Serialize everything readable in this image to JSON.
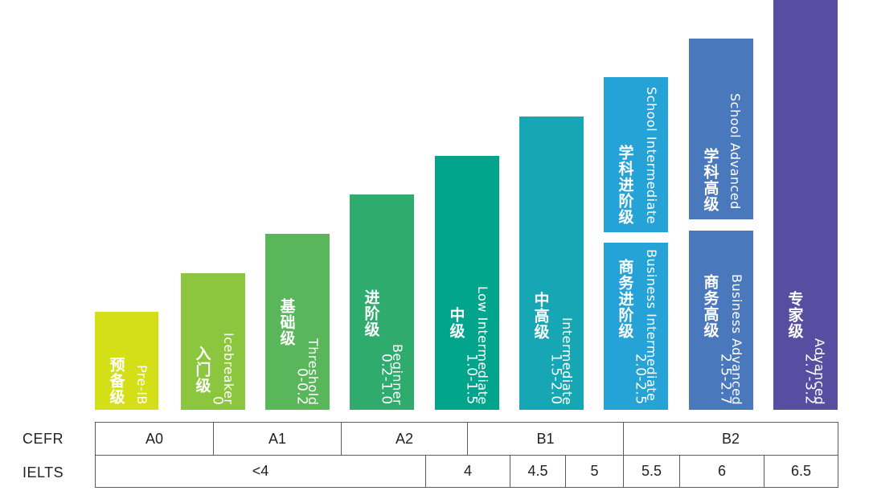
{
  "levels": [
    {
      "cn": "预备级",
      "en": "Pre-IB",
      "range": "",
      "color": "#d5df17"
    },
    {
      "cn": "入门级",
      "en": "Icebreaker",
      "range": "0",
      "color": "#8cc63e"
    },
    {
      "cn": "基础级",
      "en": "Threshold",
      "range": "0-0.2",
      "color": "#59b65a"
    },
    {
      "cn": "进阶级",
      "en": "Beginner",
      "range": "0.2-1.0",
      "color": "#2eab6d"
    },
    {
      "cn": "中级",
      "en": "Low Intermediate",
      "range": "1.0-1.5",
      "color": "#02a58c"
    },
    {
      "cn": "中高级",
      "en": "Intermediate",
      "range": "1.5-2.0",
      "color": "#17a6b4"
    },
    {
      "cn": "学科进阶级",
      "en": "School Intermediate",
      "range": "",
      "color": "#26a3d6"
    },
    {
      "cn": "商务进阶级",
      "en": "Business Intermediate",
      "range": "2.0-2.5",
      "color": "#26a3d6"
    },
    {
      "cn": "学科高级",
      "en": "School Advanced",
      "range": "",
      "color": "#4a78bd"
    },
    {
      "cn": "商务高级",
      "en": "Business Advanced",
      "range": "2.5-2.7",
      "color": "#4a78bd"
    },
    {
      "cn": "专家级",
      "en": "Advanced",
      "range": "2.7-3.2",
      "color": "#574ea1"
    }
  ],
  "table": {
    "cefr_label": "CEFR",
    "ielts_label": "IELTS",
    "cefr": [
      "A0",
      "A1",
      "A2",
      "B1",
      "B2"
    ],
    "ielts": [
      "<4",
      "4",
      "4.5",
      "5",
      "5.5",
      "6",
      "6.5"
    ]
  }
}
